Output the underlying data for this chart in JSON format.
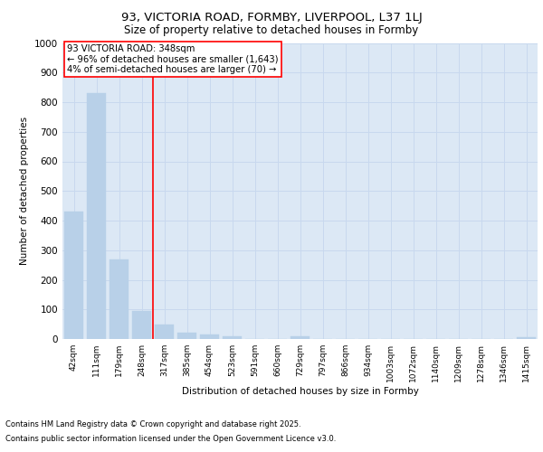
{
  "title_line1": "93, VICTORIA ROAD, FORMBY, LIVERPOOL, L37 1LJ",
  "title_line2": "Size of property relative to detached houses in Formby",
  "xlabel": "Distribution of detached houses by size in Formby",
  "ylabel": "Number of detached properties",
  "categories": [
    "42sqm",
    "111sqm",
    "179sqm",
    "248sqm",
    "317sqm",
    "385sqm",
    "454sqm",
    "523sqm",
    "591sqm",
    "660sqm",
    "729sqm",
    "797sqm",
    "866sqm",
    "934sqm",
    "1003sqm",
    "1072sqm",
    "1140sqm",
    "1209sqm",
    "1278sqm",
    "1346sqm",
    "1415sqm"
  ],
  "values": [
    430,
    830,
    270,
    95,
    50,
    20,
    15,
    10,
    0,
    0,
    8,
    0,
    0,
    0,
    0,
    0,
    0,
    0,
    0,
    0,
    5
  ],
  "bar_color": "#b8d0e8",
  "bar_edge_color": "#b8d0e8",
  "grid_color": "#c8d8ee",
  "vline_color": "red",
  "vline_xval": 3.5,
  "annotation_text": "93 VICTORIA ROAD: 348sqm\n← 96% of detached houses are smaller (1,643)\n4% of semi-detached houses are larger (70) →",
  "annotation_box_color": "white",
  "annotation_box_edgecolor": "red",
  "ylim": [
    0,
    1000
  ],
  "yticks": [
    0,
    100,
    200,
    300,
    400,
    500,
    600,
    700,
    800,
    900,
    1000
  ],
  "footer_line1": "Contains HM Land Registry data © Crown copyright and database right 2025.",
  "footer_line2": "Contains public sector information licensed under the Open Government Licence v3.0.",
  "fig_bg_color": "#ffffff",
  "plot_bg_color": "#dce8f5"
}
